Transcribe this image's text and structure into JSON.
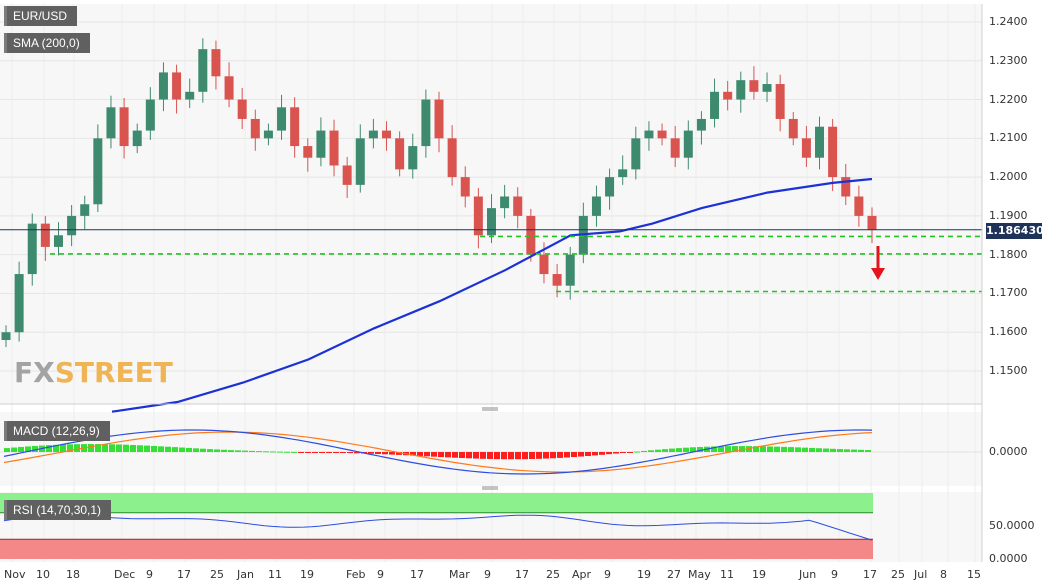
{
  "symbol": "EUR/USD",
  "sma_label": "SMA (200,0)",
  "macd_label": "MACD (12,26,9)",
  "rsi_label": "RSI (14,70,30,1)",
  "last_price": "1.186430",
  "logo": {
    "fx": "FX",
    "street": "STREET"
  },
  "colors": {
    "up": "#3d8a6e",
    "down": "#d9534f",
    "sma": "#1c31d6",
    "support": "#22c322",
    "arrow": "#e3141b",
    "last_price_bg": "#1f3358"
  },
  "chart_data": [
    {
      "type": "candlestick",
      "title": "EUR/USD",
      "y_ticks": [
        "1.2400",
        "1.2300",
        "1.2200",
        "1.2100",
        "1.2000",
        "1.1900",
        "1.1800",
        "1.1700",
        "1.1600",
        "1.1500"
      ],
      "ylim": [
        1.142,
        1.245
      ],
      "x_labels": [
        "Nov",
        "10",
        "18",
        "Dec",
        "9",
        "17",
        "25",
        "Jan",
        "11",
        "19",
        "Feb",
        "9",
        "17",
        "Mar",
        "9",
        "17",
        "25",
        "Apr",
        "9",
        "19",
        "27",
        "May",
        "11",
        "19",
        "Jun",
        "9",
        "17",
        "25",
        "Jul",
        "8",
        "15"
      ],
      "last_price": 1.18643,
      "support_levels": [
        1.1847,
        1.1802,
        1.1705
      ],
      "sma_200": [
        [
          0,
          1.1395
        ],
        [
          20,
          1.142
        ],
        [
          40,
          1.147
        ],
        [
          60,
          1.153
        ],
        [
          80,
          1.161
        ],
        [
          100,
          1.168
        ],
        [
          120,
          1.176
        ],
        [
          140,
          1.185
        ],
        [
          155,
          1.186
        ],
        [
          165,
          1.188
        ],
        [
          180,
          1.192
        ],
        [
          200,
          1.196
        ],
        [
          220,
          1.1985
        ],
        [
          232,
          1.1995
        ]
      ],
      "candles_close": [
        1.16,
        1.175,
        1.188,
        1.182,
        1.185,
        1.19,
        1.193,
        1.21,
        1.218,
        1.208,
        1.212,
        1.22,
        1.227,
        1.22,
        1.222,
        1.233,
        1.226,
        1.22,
        1.215,
        1.21,
        1.212,
        1.218,
        1.208,
        1.205,
        1.212,
        1.203,
        1.198,
        1.21,
        1.212,
        1.21,
        1.202,
        1.208,
        1.22,
        1.21,
        1.2,
        1.195,
        1.185,
        1.192,
        1.195,
        1.19,
        1.18,
        1.175,
        1.172,
        1.18,
        1.19,
        1.195,
        1.2,
        1.202,
        1.21,
        1.212,
        1.21,
        1.205,
        1.212,
        1.215,
        1.222,
        1.22,
        1.225,
        1.222,
        1.224,
        1.215,
        1.21,
        1.205,
        1.213,
        1.2,
        1.195,
        1.19,
        1.1864
      ]
    },
    {
      "type": "bar",
      "title": "MACD (12,26,9)",
      "y_ticks": [
        "0.0000"
      ]
    },
    {
      "type": "line",
      "title": "RSI (14,70,30,1)",
      "y_ticks": [
        "50.0000",
        "0.0000"
      ],
      "levels": [
        70,
        30
      ]
    }
  ]
}
